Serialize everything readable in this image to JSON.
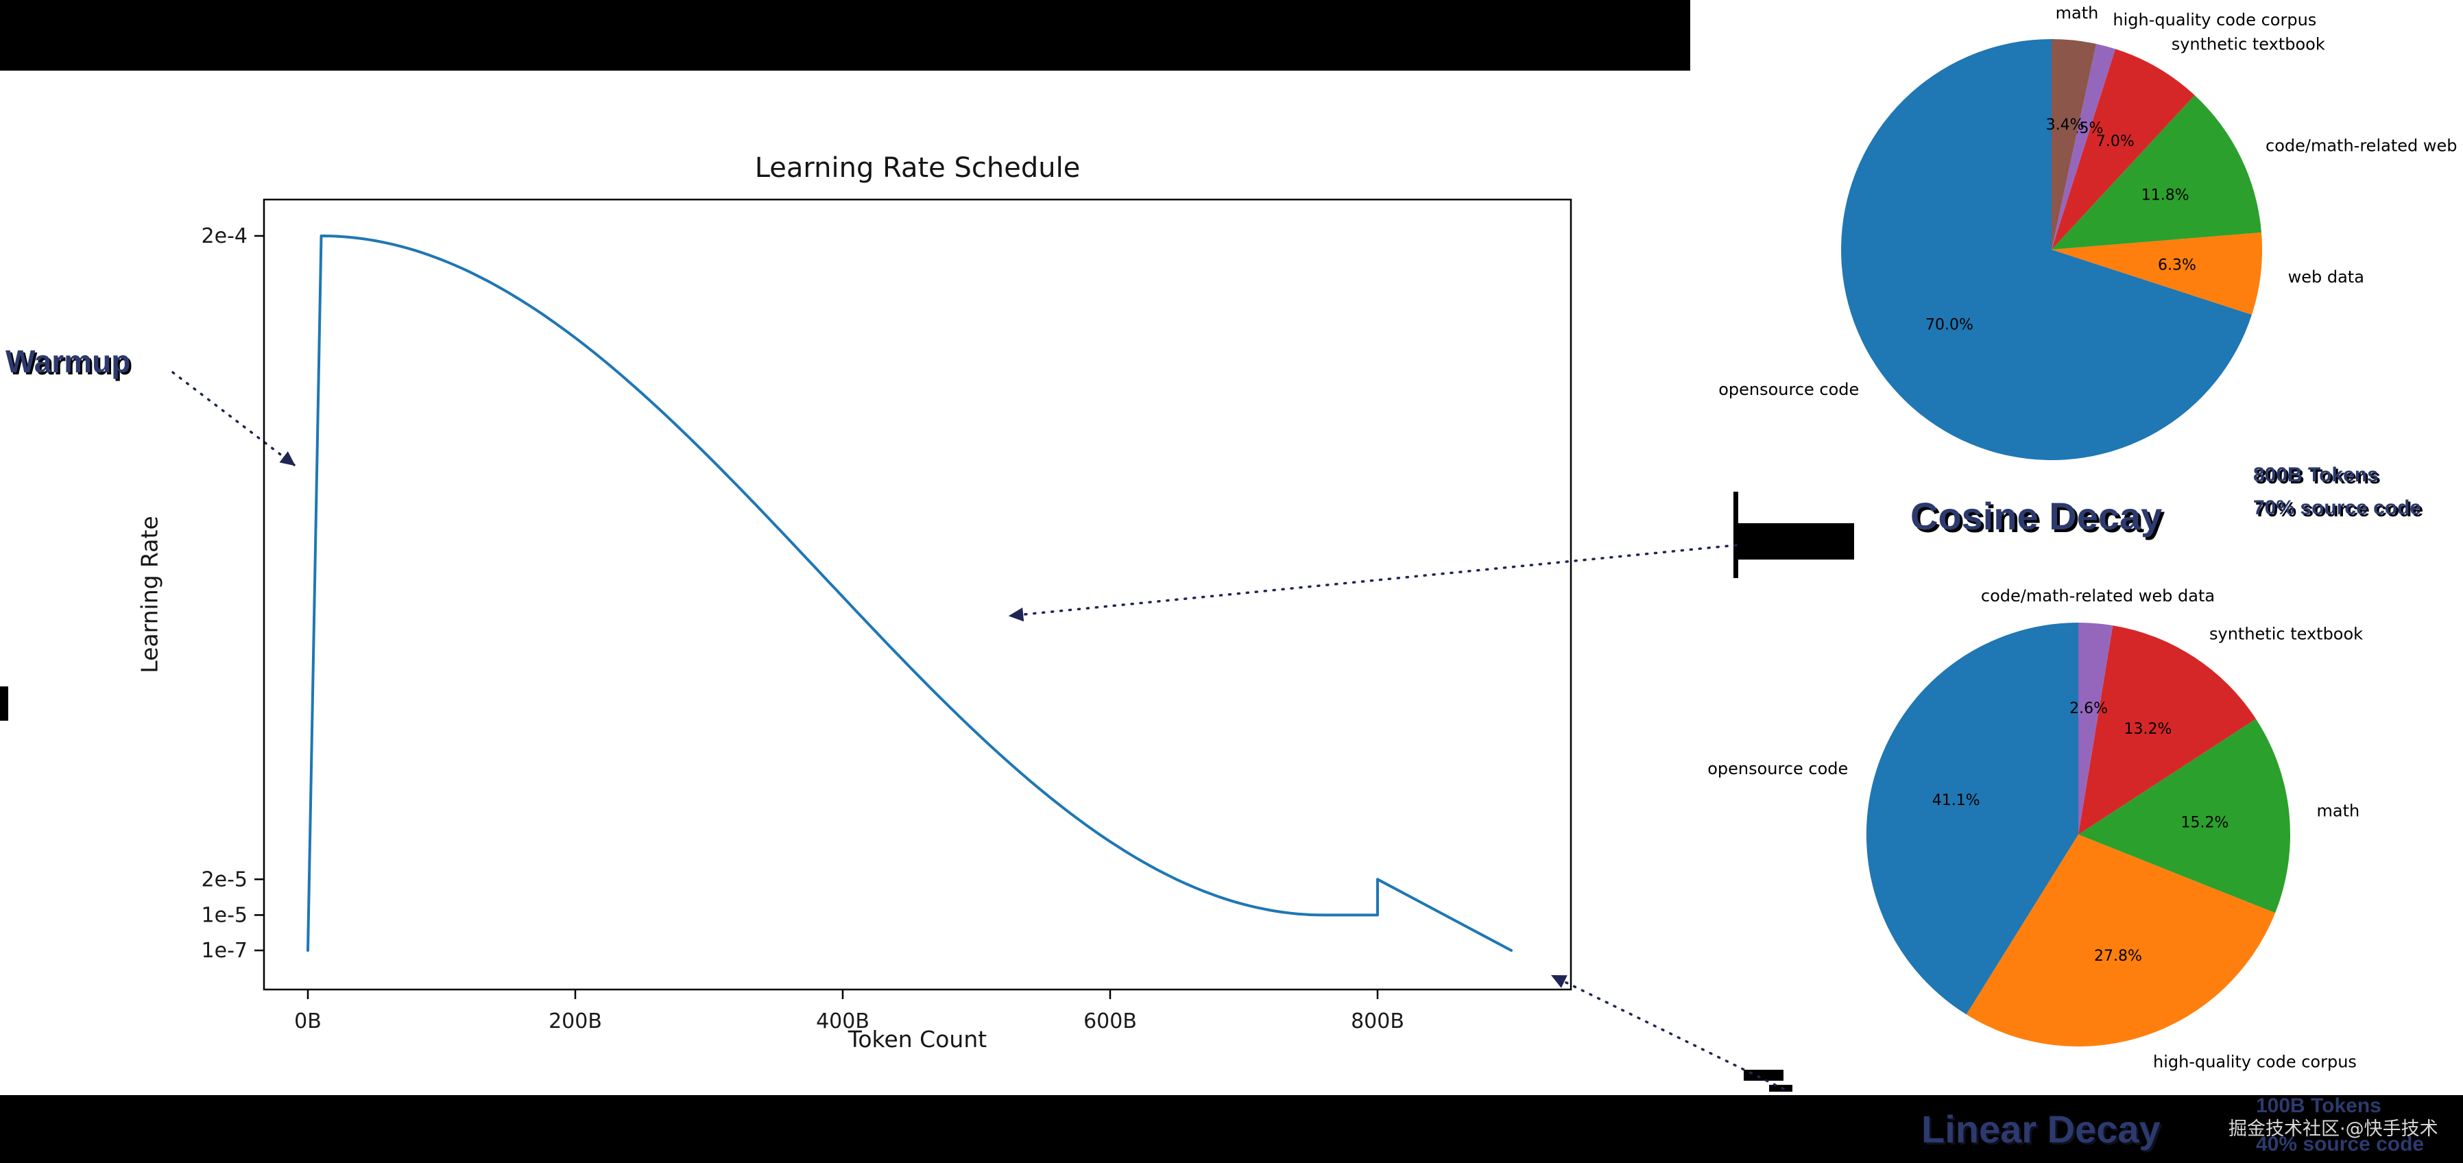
{
  "figure": {
    "background": "#ffffff",
    "letterbox_color": "#000000"
  },
  "colors": {
    "curve": "#1f77b4",
    "annotation_text": "#2c3a6e",
    "arrow": "#1f2554"
  },
  "annotations": {
    "warmup": "Warmup",
    "cosine": "Cosine Decay",
    "linear": "Linear Decay"
  },
  "watermark": "掘金技术社区·@快手技术",
  "chart_data": [
    {
      "type": "line",
      "title": "Learning Rate Schedule",
      "xlabel": "Token Count",
      "ylabel": "Learning Rate",
      "y_scale": "linear",
      "grid": false,
      "x_ticks": [
        {
          "label": "0B",
          "tokens_b": 0
        },
        {
          "label": "200B",
          "tokens_b": 200
        },
        {
          "label": "400B",
          "tokens_b": 400
        },
        {
          "label": "600B",
          "tokens_b": 600
        },
        {
          "label": "800B",
          "tokens_b": 800
        }
      ],
      "y_ticks": [
        {
          "label": "2e-4",
          "lr": 0.0002
        },
        {
          "label": "2e-5",
          "lr": 2e-05
        },
        {
          "label": "1e-5",
          "lr": 1e-05
        },
        {
          "label": "1e-7",
          "lr": 1e-07
        }
      ],
      "series": [
        {
          "name": "learning rate",
          "color": "#1f77b4",
          "schedule": {
            "warmup": {
              "start_tokens_b": 0,
              "end_tokens_b": 10,
              "start_lr": 1e-07,
              "peak_lr": 0.0002
            },
            "cosine_decay": {
              "start_tokens_b": 10,
              "end_tokens_b": 760,
              "from_lr": 0.0002,
              "to_lr": 1e-05
            },
            "constant": {
              "start_tokens_b": 760,
              "end_tokens_b": 800,
              "lr": 1e-05
            },
            "linear_decay": {
              "start_tokens_b": 800,
              "end_tokens_b": 900,
              "from_lr": 2e-05,
              "to_lr": 1e-07
            }
          },
          "key_points": [
            [
              0,
              1e-07
            ],
            [
              10,
              0.0002
            ],
            [
              400,
              0.000105
            ],
            [
              760,
              1e-05
            ],
            [
              800,
              1e-05
            ],
            [
              800,
              2e-05
            ],
            [
              900,
              1e-07
            ]
          ]
        }
      ]
    },
    {
      "type": "pie",
      "name": "cosine-decay-data-mix",
      "caption": [
        "800B Tokens",
        "70% source code"
      ],
      "autopct": "%.1f%%",
      "slices": [
        {
          "label": "opensource code",
          "value": 70.0,
          "color": "#1f77b4"
        },
        {
          "label": "web data",
          "value": 6.3,
          "color": "#ff7f0e"
        },
        {
          "label": "code/math-related web data",
          "value": 11.8,
          "color": "#2ca02c"
        },
        {
          "label": "synthetic textbook",
          "value": 7.0,
          "color": "#d62728"
        },
        {
          "label": "high-quality code corpus",
          "value": 1.5,
          "color": "#9467bd"
        },
        {
          "label": "math",
          "value": 3.4,
          "color": "#8c564b"
        }
      ]
    },
    {
      "type": "pie",
      "name": "linear-decay-data-mix",
      "caption": [
        "100B Tokens",
        "40% source code"
      ],
      "autopct": "%.1f%%",
      "slices": [
        {
          "label": "opensource code",
          "value": 41.1,
          "color": "#1f77b4"
        },
        {
          "label": "high-quality code corpus",
          "value": 27.8,
          "color": "#ff7f0e"
        },
        {
          "label": "math",
          "value": 15.2,
          "color": "#2ca02c"
        },
        {
          "label": "synthetic textbook",
          "value": 13.2,
          "color": "#d62728"
        },
        {
          "label": "code/math-related web data",
          "value": 2.6,
          "color": "#9467bd"
        }
      ]
    }
  ]
}
